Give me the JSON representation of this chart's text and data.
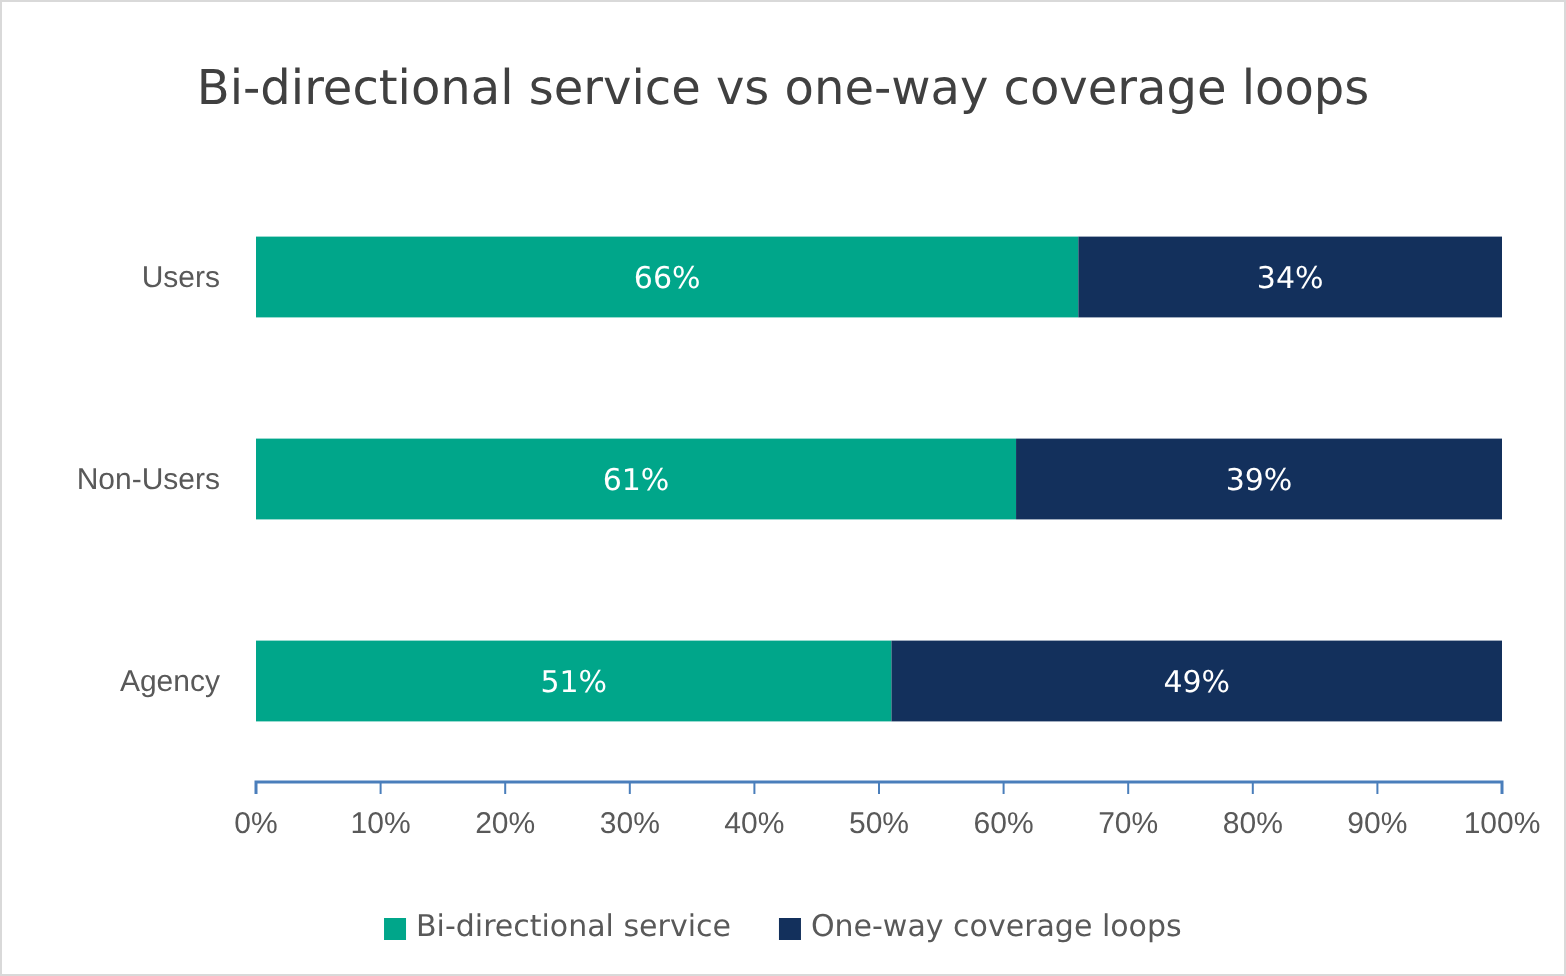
{
  "chart_data": {
    "type": "bar",
    "orientation": "horizontal",
    "stacked": true,
    "title": "Bi-directional service vs one-way coverage loops",
    "categories": [
      "Users",
      "Non-Users",
      "Agency"
    ],
    "series": [
      {
        "name": "Bi-directional service",
        "color": "#00a68a",
        "values": [
          66,
          61,
          51
        ],
        "value_labels": [
          "66%",
          "61%",
          "51%"
        ]
      },
      {
        "name": "One-way coverage loops",
        "color": "#13305c",
        "values": [
          34,
          39,
          49
        ],
        "value_labels": [
          "34%",
          "39%",
          "49%"
        ]
      }
    ],
    "xlim": [
      0,
      100
    ],
    "xticks": [
      {
        "value": 0,
        "label": "0%"
      },
      {
        "value": 10,
        "label": "10%"
      },
      {
        "value": 20,
        "label": "20%"
      },
      {
        "value": 30,
        "label": "30%"
      },
      {
        "value": 40,
        "label": "40%"
      },
      {
        "value": 50,
        "label": "50%"
      },
      {
        "value": 60,
        "label": "60%"
      },
      {
        "value": 70,
        "label": "70%"
      },
      {
        "value": 80,
        "label": "80%"
      },
      {
        "value": 90,
        "label": "90%"
      },
      {
        "value": 100,
        "label": "100%"
      }
    ],
    "grid": false,
    "legend": "bottom"
  }
}
